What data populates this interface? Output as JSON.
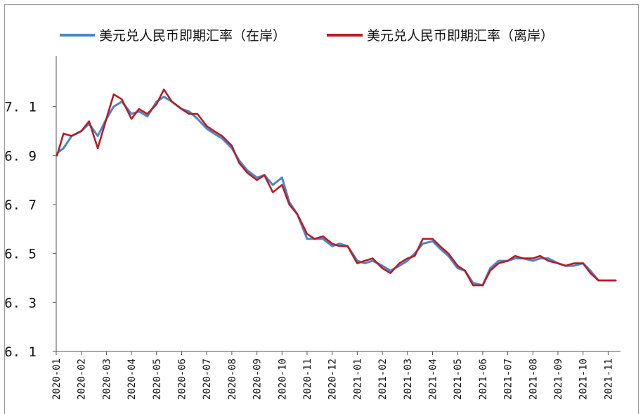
{
  "chart_data": {
    "type": "line",
    "title": "",
    "xlabel": "",
    "ylabel": "",
    "ylim": [
      6.1,
      7.3
    ],
    "yticks": [
      6.1,
      6.3,
      6.5,
      6.7,
      6.9,
      7.1
    ],
    "ytick_labels": [
      "6. 1",
      "6. 3",
      "6. 5",
      "6. 7",
      "6. 9",
      "7. 1"
    ],
    "xticks": [
      "2020-01",
      "2020-02",
      "2020-03",
      "2020-04",
      "2020-05",
      "2020-06",
      "2020-07",
      "2020-08",
      "2020-09",
      "2020-10",
      "2020-11",
      "2020-12",
      "2021-01",
      "2021-02",
      "2021-03",
      "2021-04",
      "2021-05",
      "2021-06",
      "2021-07",
      "2021-08",
      "2021-09",
      "2021-10",
      "2021-11"
    ],
    "legend_position": "top",
    "series": [
      {
        "name": "美元兑人民币即期汇率（在岸）",
        "color": "#4a86c8",
        "x": [
          "2020-01-02",
          "2020-01-10",
          "2020-01-20",
          "2020-02-01",
          "2020-02-10",
          "2020-02-20",
          "2020-03-01",
          "2020-03-10",
          "2020-03-20",
          "2020-04-01",
          "2020-04-10",
          "2020-04-20",
          "2020-05-01",
          "2020-05-10",
          "2020-05-20",
          "2020-06-01",
          "2020-06-10",
          "2020-06-20",
          "2020-07-01",
          "2020-07-10",
          "2020-07-20",
          "2020-08-01",
          "2020-08-10",
          "2020-08-20",
          "2020-09-01",
          "2020-09-10",
          "2020-09-20",
          "2020-10-01",
          "2020-10-10",
          "2020-10-20",
          "2020-11-01",
          "2020-11-10",
          "2020-11-20",
          "2020-12-01",
          "2020-12-10",
          "2020-12-20",
          "2021-01-01",
          "2021-01-10",
          "2021-01-20",
          "2021-02-01",
          "2021-02-10",
          "2021-02-20",
          "2021-03-01",
          "2021-03-10",
          "2021-03-20",
          "2021-04-01",
          "2021-04-10",
          "2021-04-20",
          "2021-05-01",
          "2021-05-10",
          "2021-05-20",
          "2021-06-01",
          "2021-06-10",
          "2021-06-20",
          "2021-07-01",
          "2021-07-10",
          "2021-07-20",
          "2021-08-01",
          "2021-08-10",
          "2021-08-20",
          "2021-09-01",
          "2021-09-10",
          "2021-09-20",
          "2021-10-01",
          "2021-10-10",
          "2021-10-20",
          "2021-11-01",
          "2021-11-10"
        ],
        "values": [
          6.91,
          6.93,
          6.98,
          7.0,
          7.03,
          6.98,
          7.05,
          7.1,
          7.12,
          7.07,
          7.08,
          7.06,
          7.12,
          7.14,
          7.12,
          7.09,
          7.08,
          7.05,
          7.01,
          6.99,
          6.97,
          6.93,
          6.88,
          6.84,
          6.81,
          6.82,
          6.78,
          6.81,
          6.71,
          6.66,
          6.56,
          6.56,
          6.56,
          6.53,
          6.54,
          6.53,
          6.47,
          6.46,
          6.47,
          6.45,
          6.43,
          6.45,
          6.47,
          6.5,
          6.54,
          6.55,
          6.52,
          6.49,
          6.44,
          6.43,
          6.38,
          6.37,
          6.44,
          6.47,
          6.47,
          6.48,
          6.48,
          6.47,
          6.48,
          6.48,
          6.46,
          6.45,
          6.45,
          6.46,
          6.43,
          6.39,
          6.39,
          6.39
        ]
      },
      {
        "name": "美元兑人民币即期汇率（离岸）",
        "color": "#b71c25",
        "x": [
          "2020-01-02",
          "2020-01-10",
          "2020-01-20",
          "2020-02-01",
          "2020-02-10",
          "2020-02-20",
          "2020-03-01",
          "2020-03-10",
          "2020-03-20",
          "2020-04-01",
          "2020-04-10",
          "2020-04-20",
          "2020-05-01",
          "2020-05-10",
          "2020-05-20",
          "2020-06-01",
          "2020-06-10",
          "2020-06-20",
          "2020-07-01",
          "2020-07-10",
          "2020-07-20",
          "2020-08-01",
          "2020-08-10",
          "2020-08-20",
          "2020-09-01",
          "2020-09-10",
          "2020-09-20",
          "2020-10-01",
          "2020-10-10",
          "2020-10-20",
          "2020-11-01",
          "2020-11-10",
          "2020-11-20",
          "2020-12-01",
          "2020-12-10",
          "2020-12-20",
          "2021-01-01",
          "2021-01-10",
          "2021-01-20",
          "2021-02-01",
          "2021-02-10",
          "2021-02-20",
          "2021-03-01",
          "2021-03-10",
          "2021-03-20",
          "2021-04-01",
          "2021-04-10",
          "2021-04-20",
          "2021-05-01",
          "2021-05-10",
          "2021-05-20",
          "2021-06-01",
          "2021-06-10",
          "2021-06-20",
          "2021-07-01",
          "2021-07-10",
          "2021-07-20",
          "2021-08-01",
          "2021-08-10",
          "2021-08-20",
          "2021-09-01",
          "2021-09-10",
          "2021-09-20",
          "2021-10-01",
          "2021-10-10",
          "2021-10-20",
          "2021-11-01",
          "2021-11-10"
        ],
        "values": [
          6.9,
          6.99,
          6.98,
          7.0,
          7.04,
          6.93,
          7.05,
          7.15,
          7.13,
          7.05,
          7.09,
          7.07,
          7.11,
          7.17,
          7.12,
          7.09,
          7.07,
          7.07,
          7.02,
          7.0,
          6.98,
          6.94,
          6.87,
          6.83,
          6.8,
          6.82,
          6.75,
          6.78,
          6.7,
          6.66,
          6.58,
          6.56,
          6.57,
          6.54,
          6.53,
          6.53,
          6.46,
          6.47,
          6.48,
          6.44,
          6.42,
          6.46,
          6.48,
          6.49,
          6.56,
          6.56,
          6.53,
          6.5,
          6.45,
          6.43,
          6.37,
          6.37,
          6.43,
          6.46,
          6.47,
          6.49,
          6.48,
          6.48,
          6.49,
          6.47,
          6.46,
          6.45,
          6.46,
          6.46,
          6.42,
          6.39,
          6.39,
          6.39
        ]
      }
    ]
  }
}
